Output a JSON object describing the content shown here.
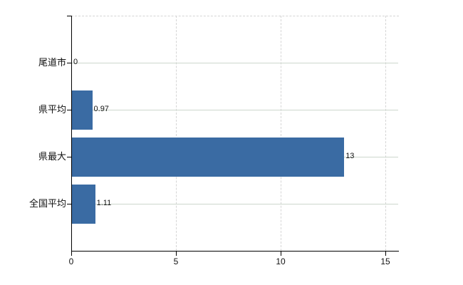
{
  "chart_data": {
    "type": "bar",
    "orientation": "horizontal",
    "title": "",
    "xlabel": "",
    "ylabel": "",
    "categories": [
      "尾道市",
      "県平均",
      "県最大",
      "全国平均"
    ],
    "values": [
      0,
      0.97,
      13,
      1.11
    ],
    "value_labels": [
      "0",
      "0.97",
      "13",
      "1.11"
    ],
    "xlim": [
      0,
      15
    ],
    "x_ticks": [
      0,
      5,
      10,
      15
    ],
    "x_tick_labels": [
      "0",
      "5",
      "10",
      "15"
    ],
    "grid": true,
    "legend": "none",
    "bar_color": "#3a6ba3",
    "axis_color": "#000000",
    "gridline_color": "#cdd7cd",
    "dashed_gridline_color": "#d5d5d5",
    "text_color": "#111111",
    "background_color": "#ffffff"
  }
}
